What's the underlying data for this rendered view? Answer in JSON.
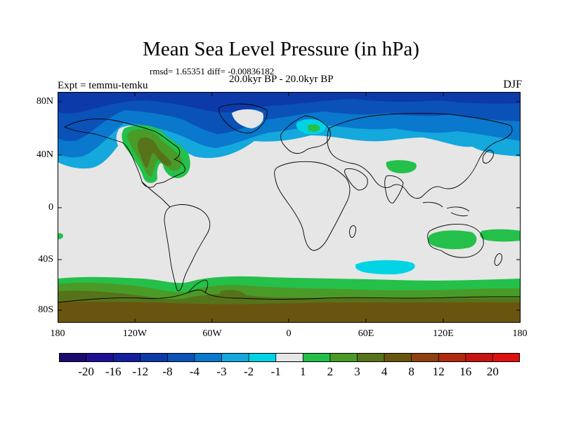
{
  "title": "Mean Sea Level Pressure (in hPa)",
  "stats_text": "rmsd= 1.65351 diff= -0.00836182",
  "period_text": "20.0kyr BP - 20.0kyr BP",
  "experiment_text": "Expt = temmu-temku",
  "season": "DJF",
  "lat_ticks": [
    "80N",
    "40N",
    "0",
    "40S",
    "80S"
  ],
  "lon_ticks": [
    "180",
    "120W",
    "60W",
    "0",
    "60E",
    "120E",
    "180"
  ],
  "colorbar": {
    "labels": [
      "-20",
      "-16",
      "-12",
      "-8",
      "-4",
      "-3",
      "-2",
      "-1",
      "1",
      "2",
      "3",
      "4",
      "8",
      "12",
      "16",
      "20"
    ],
    "colors": [
      "#1a0a6e",
      "#1e1096",
      "#14209e",
      "#0c3aa8",
      "#0a52b8",
      "#0a78cc",
      "#14a8dc",
      "#00d4e4",
      "#e6e6e6",
      "#24c04a",
      "#4a9a28",
      "#56731a",
      "#6a5510",
      "#904010",
      "#b02a10",
      "#c81410",
      "#e01010"
    ]
  },
  "map_colors": {
    "ocean_background": "#e6e6e6",
    "coastline": "#000000"
  }
}
